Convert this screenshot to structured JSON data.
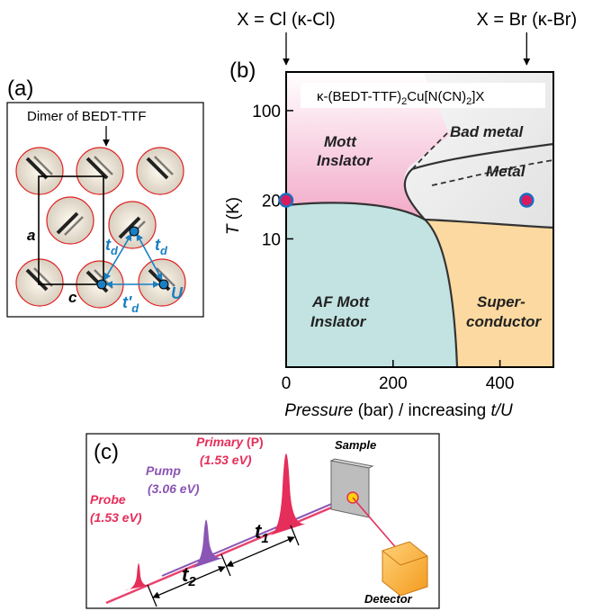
{
  "panel_a": {
    "label": "(a)",
    "dimer_label": "Dimer of BEDT-TTF",
    "axis_a": "a",
    "axis_c": "c",
    "td_1": {
      "main": "t",
      "sub": "d"
    },
    "td_2": {
      "main": "t",
      "sub": "d"
    },
    "tpd": {
      "main": "t'",
      "sub": "d"
    },
    "u": "U"
  },
  "chart_data": {
    "type": "scatter",
    "label": "(b)",
    "title_parts": [
      "κ-(BEDT-TTF)",
      "2",
      "Cu[N(CN)",
      "2",
      "]X"
    ],
    "annotations": [
      "X = Cl (κ-Cl)",
      "X = Br (κ-Br)"
    ],
    "xlabel": [
      "Pressure",
      " (bar) / increasing ",
      "t/U"
    ],
    "ylabel": [
      "T",
      " (K)"
    ],
    "regions": {
      "mott": [
        "Mott",
        "Inslator"
      ],
      "bad_metal": "Bad metal",
      "metal": "Metal",
      "af": [
        "AF Mott",
        "Inslator"
      ],
      "sc": [
        "Super-",
        "conductor"
      ]
    },
    "xlim": [
      0,
      500
    ],
    "xticks": [
      0,
      200,
      400
    ],
    "ylim": [
      1,
      200
    ],
    "yticks": [
      10,
      20,
      100
    ],
    "log_y": true,
    "series": [
      {
        "color": "#d81b60",
        "x": [
          0,
          450
        ],
        "values": [
          20,
          20
        ]
      }
    ]
  },
  "panel_c": {
    "label": "(c)",
    "primary": [
      "Primary",
      " (P)"
    ],
    "primary_energy": "(1.53 eV)",
    "pump": "Pump",
    "pump_energy": "(3.06 eV)",
    "probe": "Probe",
    "probe_energy": "(1.53 eV)",
    "sample": "Sample",
    "detector": "Detector",
    "t1": {
      "main": "t",
      "sub": "1"
    },
    "t2": {
      "main": "t",
      "sub": "2"
    }
  }
}
